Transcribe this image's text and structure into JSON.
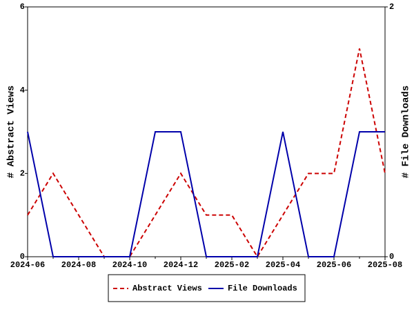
{
  "chart_data": {
    "type": "line",
    "categories": [
      "2024-06",
      null,
      "2024-08",
      null,
      "2024-10",
      null,
      "2024-12",
      null,
      "2025-02",
      null,
      "2025-04",
      null,
      "2025-06",
      null,
      "2025-08"
    ],
    "y_label": "# Abstract Views",
    "y2_label": "# File Downloads",
    "ylim": [
      0,
      6
    ],
    "yticks": [
      0,
      2,
      4,
      6
    ],
    "y2lim": [
      0,
      2
    ],
    "y2ticks": [
      0,
      2
    ],
    "legend": "bottom",
    "series": [
      {
        "name": "Abstract Views",
        "color": "#cc0000",
        "dashed": true,
        "values": [
          1,
          2,
          1,
          0,
          0,
          1,
          2,
          1,
          1,
          0,
          1,
          2,
          2,
          5,
          2
        ]
      },
      {
        "name": "File Downloads",
        "color": "#0000aa",
        "axis": "y2",
        "values": [
          1,
          0,
          0,
          0,
          0,
          1,
          1,
          0,
          0,
          0,
          1,
          0,
          0,
          1,
          1
        ]
      }
    ]
  }
}
